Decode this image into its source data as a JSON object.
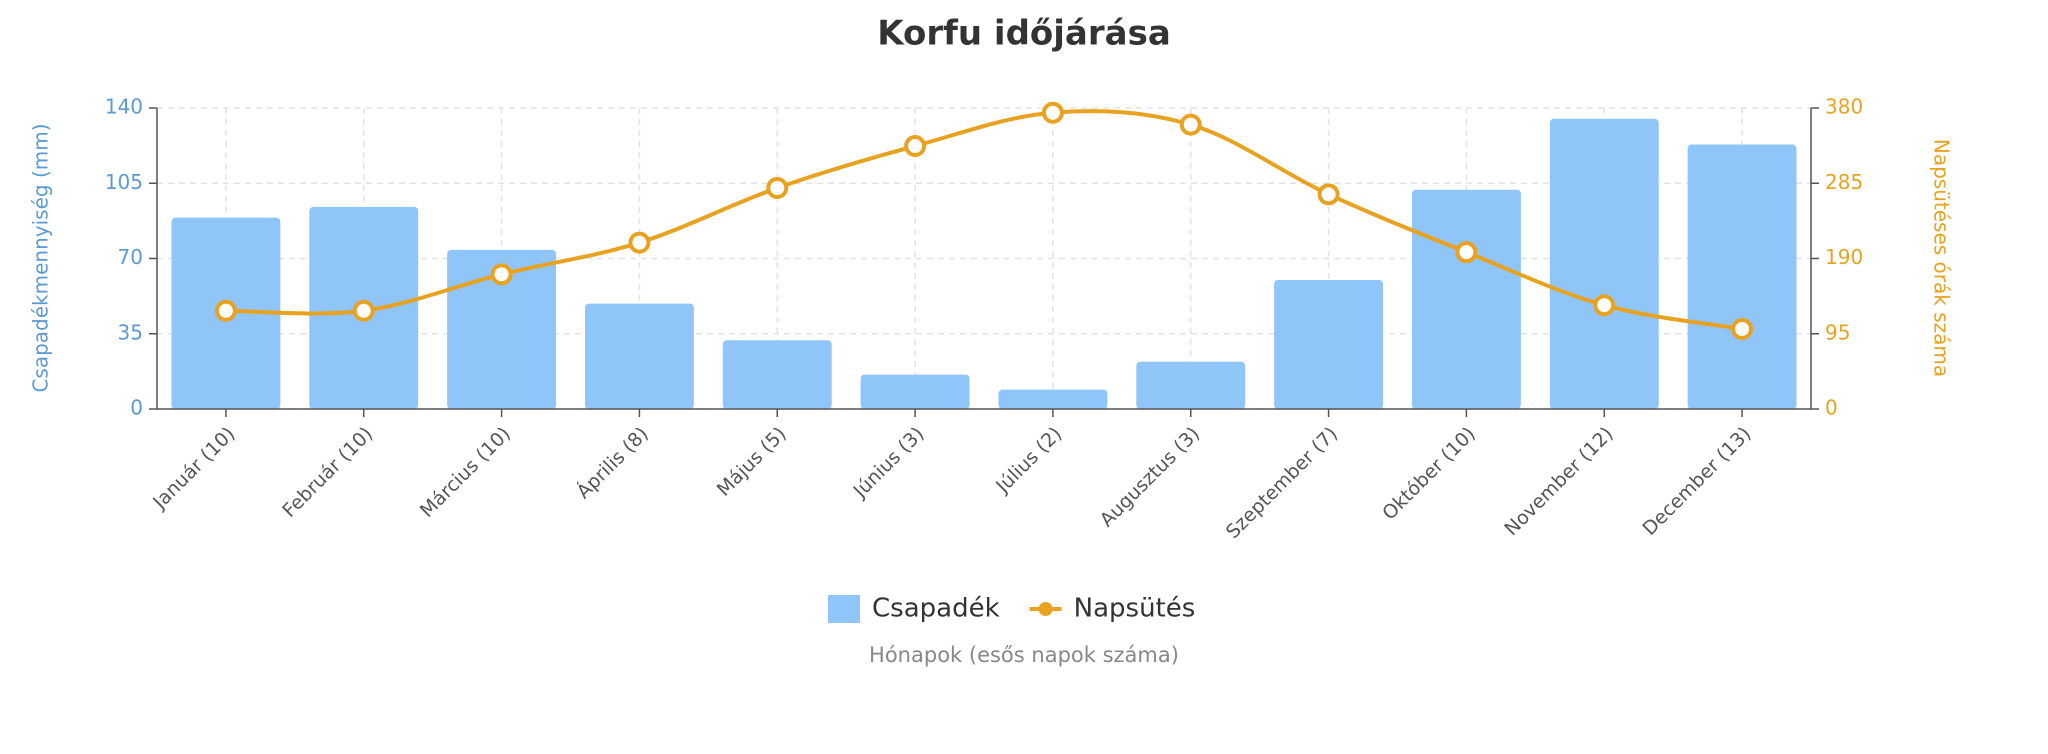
{
  "chart_data": {
    "type": "combo",
    "title": "Korfu időjárása",
    "x_label": "Hónapok (esős napok száma)",
    "y_label": "Csapadékmennyiség (mm)",
    "y2_label": "Napsütéses órák száma",
    "categories": [
      "Január (10)",
      "Február (10)",
      "Március (10)",
      "Április (8)",
      "Május (5)",
      "Június (3)",
      "Július (2)",
      "Augusztus (3)",
      "Szeptember (7)",
      "Október (10)",
      "November (12)",
      "December (13)"
    ],
    "series": [
      {
        "name": "Csapadék",
        "type": "bar",
        "color": "#90c5fa",
        "values": [
          89,
          94,
          74,
          49,
          32,
          16,
          9,
          22,
          60,
          102,
          135,
          123
        ]
      },
      {
        "name": "Napsütés",
        "type": "line",
        "axis": "y2",
        "color": "#e9a21f",
        "values": [
          124,
          124,
          170,
          210,
          279,
          332,
          374,
          359,
          271,
          198,
          131,
          101
        ]
      }
    ],
    "ylim": [
      0,
      140
    ],
    "yticks": [
      0,
      35,
      70,
      105,
      140
    ],
    "y2lim": [
      0,
      380
    ],
    "y2ticks": [
      0,
      95,
      190,
      285,
      380
    ],
    "grid": true,
    "legend": "bottom"
  }
}
